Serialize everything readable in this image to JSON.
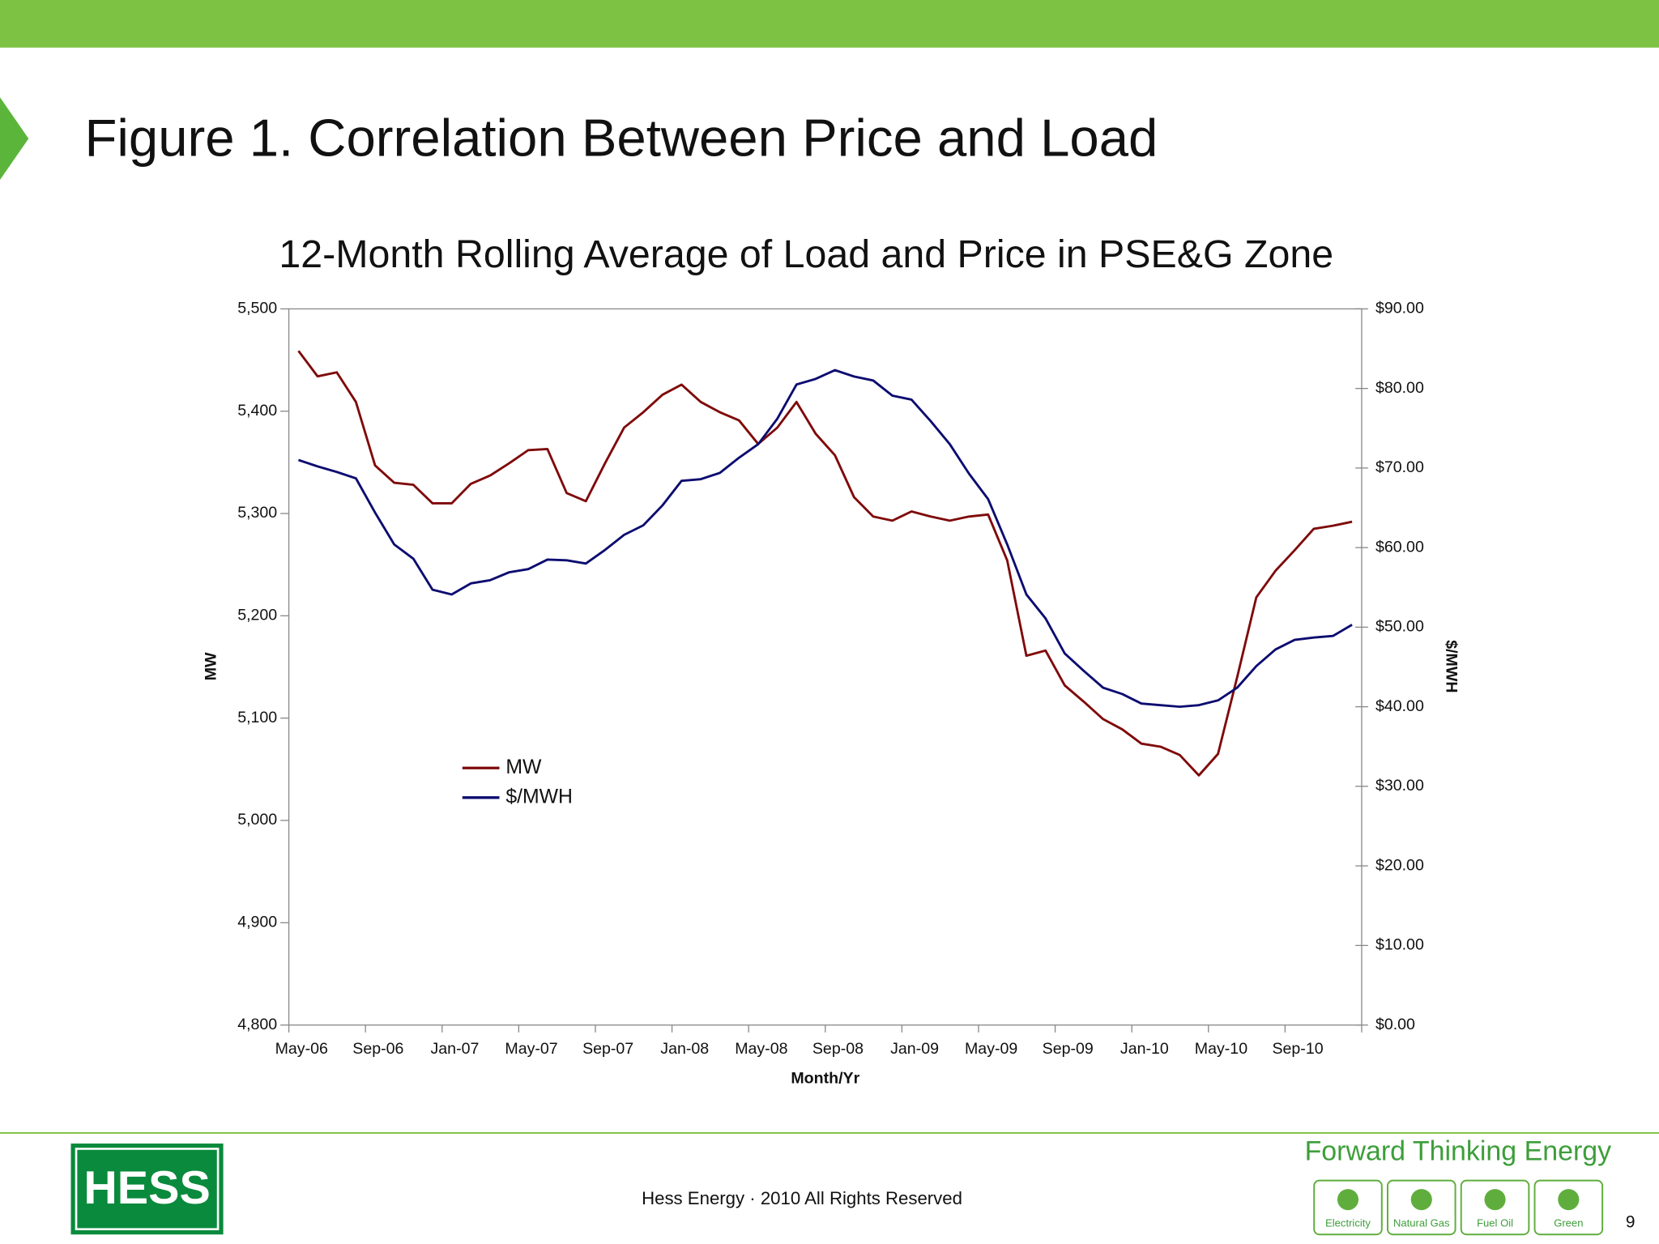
{
  "slide": {
    "title": "Figure 1. Correlation Between Price and Load",
    "footer": "Hess Energy · 2010 All Rights Reserved",
    "tagline": "Forward Thinking Energy",
    "logo": "HESS",
    "page_number": 9,
    "icons": [
      "Electricity",
      "Natural Gas",
      "Fuel Oil",
      "Green"
    ]
  },
  "chart_data": {
    "type": "line",
    "title": "12-Month Rolling Average of Load and Price in PSE&G Zone",
    "x_label": "Month/Yr",
    "y_label": "MW",
    "y2_label": "$/MWH",
    "categories": [
      "May-06",
      null,
      null,
      null,
      "Sep-06",
      null,
      null,
      null,
      "Jan-07",
      null,
      null,
      null,
      "May-07",
      null,
      null,
      null,
      "Sep-07",
      null,
      null,
      null,
      "Jan-08",
      null,
      null,
      null,
      "May-08",
      null,
      null,
      null,
      "Sep-08",
      null,
      null,
      null,
      "Jan-09",
      null,
      null,
      null,
      "May-09",
      null,
      null,
      null,
      "Sep-09",
      null,
      null,
      null,
      "Jan-10",
      null,
      null,
      null,
      "May-10",
      null,
      null,
      null,
      "Sep-10",
      null,
      null,
      null
    ],
    "series": [
      {
        "name": "MW",
        "color": "#7f0a0a",
        "values": [
          5459,
          5434,
          5438,
          5409,
          5347,
          5330,
          5328,
          5310,
          5310,
          5329,
          5337,
          5349,
          5362,
          5363,
          5320,
          5312,
          5349,
          5384,
          5399,
          5416,
          5426,
          5409,
          5399,
          5391,
          5368,
          5384,
          5409,
          5378,
          5357,
          5316,
          5297,
          5293,
          5302,
          5297,
          5293,
          5297,
          5299,
          5254,
          5161,
          5166,
          5132,
          5116,
          5099,
          5089,
          5075,
          5072,
          5064,
          5044,
          5065,
          5140,
          5218,
          5244,
          5264,
          5285,
          5288,
          5292
        ]
      },
      {
        "name": "$/MWH",
        "color": "#0c0c70",
        "axis": "y2",
        "values": [
          71.0,
          70.2,
          69.5,
          68.7,
          64.4,
          60.4,
          58.6,
          54.7,
          54.1,
          55.5,
          55.9,
          56.9,
          57.3,
          58.5,
          58.4,
          58.0,
          59.7,
          61.6,
          62.8,
          65.3,
          68.4,
          68.6,
          69.4,
          71.3,
          73.0,
          76.2,
          80.5,
          81.2,
          82.3,
          81.5,
          81.0,
          79.1,
          78.6,
          75.9,
          73.0,
          69.3,
          66.1,
          60.4,
          54.1,
          51.1,
          46.7,
          44.5,
          42.4,
          41.6,
          40.4,
          40.2,
          40.0,
          40.2,
          40.8,
          42.4,
          45.1,
          47.2,
          48.4,
          48.7,
          48.9,
          50.3
        ]
      }
    ],
    "ylim": [
      4800,
      5500
    ],
    "yticks": [
      {
        "value": 4800,
        "label": "4,800"
      },
      {
        "value": 4900,
        "label": "4,900"
      },
      {
        "value": 5000,
        "label": "5,000"
      },
      {
        "value": 5100,
        "label": "5,100"
      },
      {
        "value": 5200,
        "label": "5,200"
      },
      {
        "value": 5300,
        "label": "5,300"
      },
      {
        "value": 5400,
        "label": "5,400"
      },
      {
        "value": 5500,
        "label": "5,500"
      }
    ],
    "y2lim": [
      0,
      90
    ],
    "y2ticks": [
      {
        "value": 0,
        "label": "$0.00"
      },
      {
        "value": 10,
        "label": "$10.00"
      },
      {
        "value": 20,
        "label": "$20.00"
      },
      {
        "value": 30,
        "label": "$30.00"
      },
      {
        "value": 40,
        "label": "$40.00"
      },
      {
        "value": 50,
        "label": "$50.00"
      },
      {
        "value": 60,
        "label": "$60.00"
      },
      {
        "value": 70,
        "label": "$70.00"
      },
      {
        "value": 80,
        "label": "$80.00"
      },
      {
        "value": 90,
        "label": "$90.00"
      }
    ],
    "grid": false,
    "legend": "left"
  }
}
